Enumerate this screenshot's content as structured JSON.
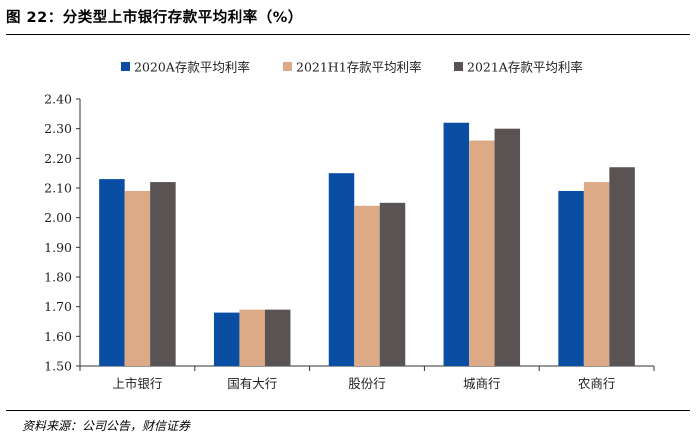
{
  "figure": {
    "title": "图 22：分类型上市银行存款平均利率（%）",
    "source": "资料来源：公司公告，财信证券"
  },
  "chart_data": {
    "type": "bar",
    "title": "",
    "xlabel": "",
    "ylabel": "",
    "categories": [
      "上市银行",
      "国有大行",
      "股份行",
      "城商行",
      "农商行"
    ],
    "series": [
      {
        "name": "2020A存款平均利率",
        "color": "#0a4ea3",
        "values": [
          2.13,
          1.68,
          2.15,
          2.32,
          2.09
        ]
      },
      {
        "name": "2021H1存款平均利率",
        "color": "#dcaa86",
        "values": [
          2.09,
          1.69,
          2.04,
          2.26,
          2.12
        ]
      },
      {
        "name": "2021A存款平均利率",
        "color": "#595353",
        "values": [
          2.12,
          1.69,
          2.05,
          2.3,
          2.17
        ]
      }
    ],
    "ylim": [
      1.5,
      2.4
    ],
    "yticks": [
      "1.50",
      "1.60",
      "1.70",
      "1.80",
      "1.90",
      "2.00",
      "2.10",
      "2.20",
      "2.30",
      "2.40"
    ],
    "grid": false,
    "legend_position": "top"
  }
}
